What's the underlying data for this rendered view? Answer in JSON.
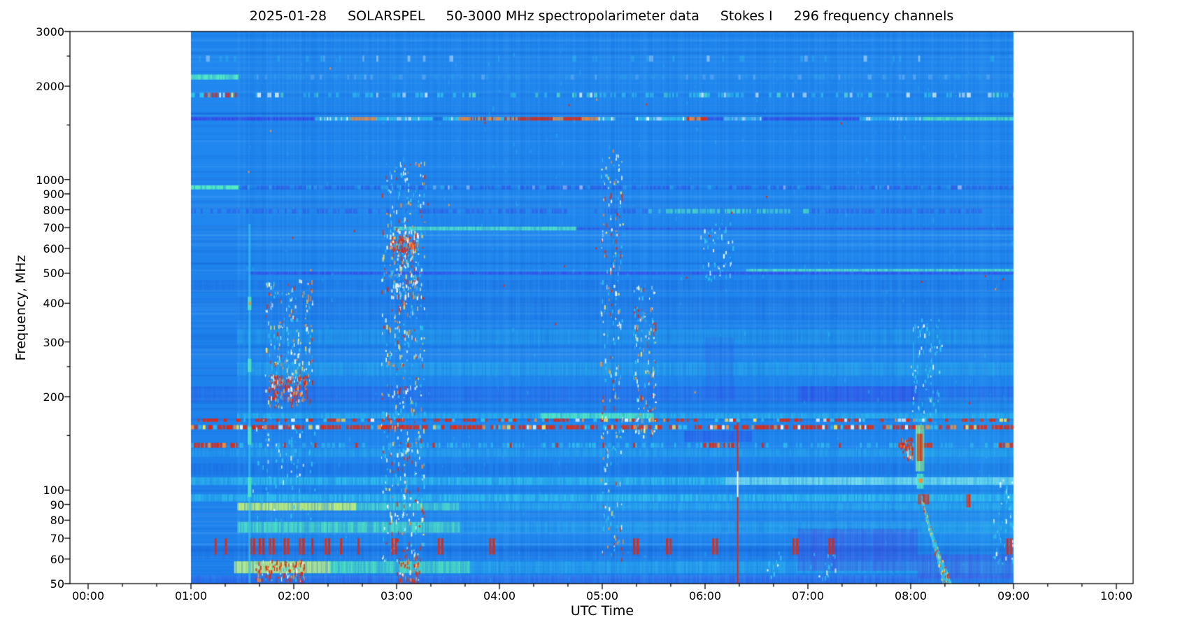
{
  "chart_data": {
    "type": "heatmap",
    "title": "2025-01-28     SOLARSPEL   50-3000 MHz spectropolarimeter data      Stokes I   296 frequency channels",
    "title_parts": [
      "2025-01-28",
      "SOLARSPEL",
      "50-3000 MHz spectropolarimeter data",
      "Stokes I",
      "296 frequency channels"
    ],
    "xlabel": "UTC Time",
    "ylabel": "Frequency, MHz",
    "y_scale": "log",
    "y_range_mhz": [
      50,
      3000
    ],
    "y_major_ticks": [
      3000,
      2000,
      1000,
      900,
      800,
      700,
      600,
      500,
      400,
      300,
      200,
      100,
      90,
      80,
      70,
      60,
      50
    ],
    "y_minor_ticks": [
      2500,
      1500,
      250,
      150
    ],
    "x_major_ticks": [
      {
        "h": 0,
        "label": "00:00"
      },
      {
        "h": 1,
        "label": "01:00"
      },
      {
        "h": 2,
        "label": "02:00"
      },
      {
        "h": 3,
        "label": "03:00"
      },
      {
        "h": 4,
        "label": "04:00"
      },
      {
        "h": 5,
        "label": "05:00"
      },
      {
        "h": 6,
        "label": "06:00"
      },
      {
        "h": 7,
        "label": "07:00"
      },
      {
        "h": 8,
        "label": "08:00"
      },
      {
        "h": 9,
        "label": "09:00"
      },
      {
        "h": 10,
        "label": "10:00"
      }
    ],
    "x_minor_interval_hours": 0.3333,
    "data_time_span_hours": [
      1.0,
      9.0
    ],
    "background_color": "#1f87ef",
    "palette": {
      "base": "#1f87ef",
      "dark_blue": "#1861db",
      "indigo": "#3843e8",
      "purple": "#5a35e0",
      "cyan": "#30c6ee",
      "light_cyan": "#9ff3f0",
      "green_cyan": "#52eac2",
      "yellow_green": "#bff07e",
      "yellow": "#ffe44f",
      "orange": "#ff8c2e",
      "red": "#ea2505",
      "white": "#f2fdff",
      "black": "#000000"
    },
    "bands": [
      {
        "f": [
          2400,
          2510
        ],
        "t": [
          1,
          9
        ],
        "c": "cyan",
        "a": 0.45,
        "k": "dash",
        "d": 0.18
      },
      {
        "f": [
          2100,
          2180
        ],
        "t": [
          1,
          1.45
        ],
        "c": "green_cyan",
        "a": 0.85,
        "k": "streaky"
      },
      {
        "f": [
          2100,
          2180
        ],
        "t": [
          1.45,
          9
        ],
        "c": "cyan",
        "a": 0.22,
        "k": "dash",
        "d": 0.5
      },
      {
        "f": [
          1840,
          1905
        ],
        "t": [
          1,
          1.45
        ],
        "c": "mixed_rfi",
        "a": 1,
        "k": "dash",
        "d": 0.85
      },
      {
        "f": [
          1840,
          1905
        ],
        "t": [
          1.45,
          9
        ],
        "c": "cyan_white",
        "a": 0.8,
        "k": "dash",
        "d": 0.42
      },
      {
        "f": [
          930,
          958
        ],
        "t": [
          1,
          1.45
        ],
        "c": "green_cyan",
        "a": 0.9,
        "k": "streaky"
      },
      {
        "f": [
          930,
          958
        ],
        "t": [
          1.45,
          9
        ],
        "c": "indigo",
        "a": 0.55,
        "k": "dash",
        "d": 0.75
      },
      {
        "f": [
          930,
          958
        ],
        "t": [
          1.45,
          9
        ],
        "c": "cyan",
        "a": 0.5,
        "k": "dash",
        "d": 0.18
      },
      {
        "f": [
          778,
          805
        ],
        "t": [
          1,
          5.45
        ],
        "c": "indigo",
        "a": 0.5,
        "k": "dash",
        "d": 0.7
      },
      {
        "f": [
          778,
          805
        ],
        "t": [
          5.45,
          7.0
        ],
        "c": "green_cyan",
        "a": 0.75,
        "k": "dash",
        "d": 0.8
      },
      {
        "f": [
          778,
          805
        ],
        "t": [
          7.0,
          9
        ],
        "c": "indigo",
        "a": 0.5,
        "k": "dash",
        "d": 0.7
      },
      {
        "f": [
          686,
          706
        ],
        "t": [
          2.97,
          4.75
        ],
        "c": "green_cyan",
        "a": 0.85,
        "k": "streaky"
      },
      {
        "f": [
          690,
          700
        ],
        "t": [
          4.75,
          9
        ],
        "c": "indigo",
        "a": 0.55,
        "k": "streaky"
      },
      {
        "f": [
          494,
          505
        ],
        "t": [
          1.56,
          9
        ],
        "c": "indigo",
        "a": 0.6,
        "k": "streaky"
      },
      {
        "f": [
          506,
          516
        ],
        "t": [
          6.4,
          9
        ],
        "c": "green_cyan",
        "a": 0.75,
        "k": "streaky"
      },
      {
        "f": [
          440,
          475
        ],
        "t": [
          1,
          9
        ],
        "c": "dark_blue",
        "a": 0.25,
        "k": "streaky"
      },
      {
        "f": [
          352,
          420
        ],
        "t": [
          1.45,
          9
        ],
        "c": "dark_blue",
        "a": 0.2,
        "k": "streaky"
      },
      {
        "f": [
          296,
          330
        ],
        "t": [
          1.45,
          9
        ],
        "c": "cyan",
        "a": 0.22,
        "k": "streaky"
      },
      {
        "f": [
          233,
          258
        ],
        "t": [
          1.45,
          9
        ],
        "c": "cyan",
        "a": 0.3,
        "k": "streaky"
      },
      {
        "f": [
          193,
          216
        ],
        "t": [
          1,
          9
        ],
        "c": "indigo",
        "a": 0.22,
        "k": "streaky"
      },
      {
        "f": [
          193,
          216
        ],
        "t": [
          6.9,
          8.06
        ],
        "c": "indigo",
        "a": 0.35,
        "k": "streaky"
      },
      {
        "f": [
          170,
          177
        ],
        "t": [
          1.45,
          9
        ],
        "c": "cyan",
        "a": 0.5,
        "k": "streaky"
      },
      {
        "f": [
          170,
          177
        ],
        "t": [
          4.4,
          5.5
        ],
        "c": "green_cyan",
        "a": 0.75,
        "k": "streaky"
      },
      {
        "f": [
          143,
          155
        ],
        "t": [
          5.8,
          6.45
        ],
        "c": "indigo",
        "a": 0.4,
        "k": "streaky"
      },
      {
        "f": [
          128,
          136
        ],
        "t": [
          1,
          9
        ],
        "c": "cyan",
        "a": 0.3,
        "k": "streaky"
      },
      {
        "f": [
          112,
          122
        ],
        "t": [
          1,
          9
        ],
        "c": "dark_blue",
        "a": 0.3,
        "k": "streaky"
      },
      {
        "f": [
          104,
          110
        ],
        "t": [
          1,
          9
        ],
        "c": "cyan",
        "a": 0.6,
        "k": "streaky"
      },
      {
        "f": [
          104,
          110
        ],
        "t": [
          6.2,
          9
        ],
        "c": "light_cyan",
        "a": 0.5,
        "k": "streaky"
      },
      {
        "f": [
          92,
          97
        ],
        "t": [
          1,
          9
        ],
        "c": "cyan",
        "a": 0.65,
        "k": "streaky"
      },
      {
        "f": [
          86,
          91
        ],
        "t": [
          1.45,
          2.6
        ],
        "c": "yellow_green",
        "a": 0.95,
        "k": "streaky"
      },
      {
        "f": [
          86,
          91
        ],
        "t": [
          2.6,
          3.6
        ],
        "c": "green_cyan",
        "a": 0.6,
        "k": "streaky"
      },
      {
        "f": [
          86,
          91
        ],
        "t": [
          3.6,
          9
        ],
        "c": "cyan",
        "a": 0.35,
        "k": "streaky"
      },
      {
        "f": [
          73,
          79
        ],
        "t": [
          1.45,
          3.6
        ],
        "c": "green_cyan",
        "a": 0.65,
        "k": "streaky"
      },
      {
        "f": [
          73,
          79
        ],
        "t": [
          3.6,
          9
        ],
        "c": "cyan",
        "a": 0.3,
        "k": "streaky"
      },
      {
        "f": [
          60,
          66
        ],
        "t": [
          1,
          9
        ],
        "c": "dark_blue",
        "a": 0.25,
        "k": "streaky"
      },
      {
        "f": [
          54,
          59
        ],
        "t": [
          1.42,
          2.35
        ],
        "c": "yellow_green",
        "a": 0.95,
        "k": "streaky"
      },
      {
        "f": [
          54,
          59
        ],
        "t": [
          2.35,
          3.7
        ],
        "c": "green_cyan",
        "a": 0.7,
        "k": "streaky"
      },
      {
        "f": [
          54,
          59
        ],
        "t": [
          3.7,
          9
        ],
        "c": "cyan",
        "a": 0.35,
        "k": "streaky"
      },
      {
        "f": [
          50,
          53
        ],
        "t": [
          1,
          9
        ],
        "c": "indigo",
        "a": 0.3,
        "k": "streaky"
      },
      {
        "f": [
          55,
          75
        ],
        "t": [
          6.9,
          8.06
        ],
        "c": "purple",
        "a": 0.28,
        "k": "streaky"
      },
      {
        "f": [
          50,
          200
        ],
        "t": [
          8.06,
          9
        ],
        "c": "cyan",
        "a": 0.13,
        "k": "streaky"
      },
      {
        "f": [
          52,
          62
        ],
        "t": [
          8.06,
          9
        ],
        "c": "purple",
        "a": 0.3,
        "k": "streaky"
      },
      {
        "f": [
          196,
          310
        ],
        "t": [
          6.0,
          6.28
        ],
        "c": "indigo",
        "a": 0.15,
        "k": "streaky"
      },
      {
        "f": [
          50,
          700
        ],
        "t": [
          1,
          1.45
        ],
        "c": "dark_blue",
        "a": 0.12,
        "k": "solid"
      }
    ],
    "rfi_rows": [
      {
        "f": [
          166,
          170
        ],
        "t": [
          1,
          9
        ],
        "density": 0.5,
        "pal": "rfi_red"
      },
      {
        "f": [
          157,
          162
        ],
        "t": [
          1,
          9
        ],
        "density": 0.88,
        "pal": "rfi_red"
      }
    ],
    "row_139": {
      "f": [
        137,
        142
      ],
      "base_density": 0.45,
      "red_segments": [
        [
          1.0,
          1.45
        ],
        [
          5.95,
          6.3
        ],
        [
          7.88,
          8.02
        ],
        [
          8.08,
          8.2
        ],
        [
          8.82,
          9.0
        ]
      ],
      "red_dot_times": [
        1.9,
        2.2,
        2.6,
        3.1,
        3.35,
        4.1,
        4.55,
        5.0,
        5.3,
        6.55,
        7.3
      ]
    },
    "line_1570": {
      "f": 1570,
      "segments": [
        [
          1.0,
          2.2,
          "indigo",
          0.75
        ],
        [
          2.2,
          2.55,
          "cyan",
          0.8
        ],
        [
          2.55,
          2.8,
          "orange",
          0.85
        ],
        [
          2.8,
          3.35,
          "cyan",
          0.8
        ],
        [
          3.35,
          3.45,
          "dark_blue",
          0.5
        ],
        [
          3.45,
          3.6,
          "cyan",
          0.85
        ],
        [
          3.6,
          3.72,
          "orange",
          0.9
        ],
        [
          3.72,
          4.18,
          "cyan_red_mix",
          0.9
        ],
        [
          4.18,
          4.52,
          "red",
          0.95
        ],
        [
          4.52,
          4.62,
          "orange",
          0.9
        ],
        [
          4.62,
          4.8,
          "red",
          0.95
        ],
        [
          4.8,
          4.95,
          "orange",
          0.9
        ],
        [
          4.95,
          5.12,
          "cyan",
          0.85
        ],
        [
          5.12,
          5.32,
          "none",
          0
        ],
        [
          5.32,
          5.82,
          "cyan",
          0.8
        ],
        [
          5.82,
          6.02,
          "orange_red",
          0.9
        ],
        [
          6.02,
          6.18,
          "indigo",
          0.6
        ],
        [
          6.18,
          6.55,
          "cyan",
          0.6
        ],
        [
          6.55,
          7.5,
          "indigo",
          0.7
        ],
        [
          7.5,
          8.12,
          "cyan",
          0.75
        ],
        [
          8.12,
          9.0,
          "green_cyan",
          0.9
        ]
      ]
    },
    "burst_columns": [
      {
        "t": [
          1.72,
          2.18
        ],
        "f": [
          185,
          480
        ],
        "n": 240,
        "p": "mixed"
      },
      {
        "t": [
          1.75,
          2.12
        ],
        "f": [
          196,
          236
        ],
        "n": 150,
        "p": "redheavy"
      },
      {
        "t": [
          1.62,
          2.1
        ],
        "f": [
          51,
          60
        ],
        "n": 110,
        "p": "redheavy"
      },
      {
        "t": [
          1.6,
          2.2
        ],
        "f": [
          80,
          180
        ],
        "n": 80,
        "p": "cyan"
      },
      {
        "t": [
          2.85,
          3.27
        ],
        "f": [
          56,
          1150
        ],
        "n": 520,
        "p": "mixed"
      },
      {
        "t": [
          2.93,
          3.2
        ],
        "f": [
          420,
          700
        ],
        "n": 160,
        "p": "mixed"
      },
      {
        "t": [
          2.95,
          3.18
        ],
        "f": [
          590,
          665
        ],
        "n": 80,
        "p": "redheavy"
      },
      {
        "t": [
          3.0,
          3.22
        ],
        "f": [
          50,
          62
        ],
        "n": 60,
        "p": "redheavy"
      },
      {
        "t": [
          4.98,
          5.2
        ],
        "f": [
          60,
          1260
        ],
        "n": 240,
        "p": "mixed"
      },
      {
        "t": [
          5.3,
          5.52
        ],
        "f": [
          150,
          460
        ],
        "n": 150,
        "p": "mixed"
      },
      {
        "t": [
          5.95,
          6.28
        ],
        "f": [
          480,
          730
        ],
        "n": 55,
        "p": "cyan"
      },
      {
        "t": [
          6.6,
          6.75
        ],
        "f": [
          52,
          66
        ],
        "n": 12,
        "p": "cyan"
      },
      {
        "t": [
          7.0,
          7.3
        ],
        "f": [
          52,
          64
        ],
        "n": 14,
        "p": "cyan"
      },
      {
        "t": [
          7.9,
          8.02
        ],
        "f": [
          128,
          148
        ],
        "n": 60,
        "p": "redheavy"
      },
      {
        "t": [
          8.0,
          8.3
        ],
        "f": [
          160,
          360
        ],
        "n": 90,
        "p": "cyan"
      },
      {
        "t": [
          8.8,
          9.0
        ],
        "f": [
          55,
          110
        ],
        "n": 50,
        "p": "cyan"
      },
      {
        "t": [
          1.45,
          9.0
        ],
        "f": [
          50,
          2600
        ],
        "n": 420,
        "p": "faint"
      }
    ],
    "red_vertical_dashes": {
      "f": [
        62,
        70
      ],
      "times": [
        1.23,
        1.33,
        1.57,
        1.66,
        1.76,
        1.9,
        2.05,
        2.17,
        2.3,
        2.45,
        2.62,
        2.95,
        3.4,
        3.9,
        5.3,
        5.62,
        6.07,
        6.85,
        7.2,
        8.93
      ]
    },
    "red_vertical_line": {
      "t": 6.31,
      "f": [
        50,
        165
      ],
      "white_gap_f": [
        95,
        115
      ]
    },
    "onset": {
      "t": 1.56,
      "f": [
        50,
        720
      ],
      "hot_spots_f": [
        [
          380,
          420
        ],
        [
          240,
          265
        ],
        [
          140,
          160
        ],
        [
          95,
          110
        ]
      ]
    },
    "event_0810": {
      "main_blob": {
        "t": [
          8.05,
          8.13
        ],
        "f": [
          115,
          162
        ]
      },
      "red_core": {
        "t": [
          8.06,
          8.11
        ],
        "f": [
          124,
          152
        ]
      },
      "low_blob": {
        "t": [
          8.06,
          8.12
        ],
        "f": [
          101,
          113
        ]
      },
      "red_90": {
        "t": [
          8.07,
          8.17
        ],
        "f": [
          90,
          97
        ]
      },
      "red_90_late": {
        "t": [
          8.54,
          8.57
        ],
        "f": [
          88,
          97
        ]
      },
      "arcs": {
        "t_start": 8.09,
        "n": 6,
        "f_start": 96,
        "f_end": 50,
        "t_span": 0.22
      },
      "pre_streak": {
        "t": 8.02,
        "f": [
          230,
          300
        ]
      }
    },
    "scatter_red_specks": {
      "n": 28,
      "t": [
        1.5,
        8.9
      ],
      "f": [
        180,
        2600
      ]
    }
  }
}
